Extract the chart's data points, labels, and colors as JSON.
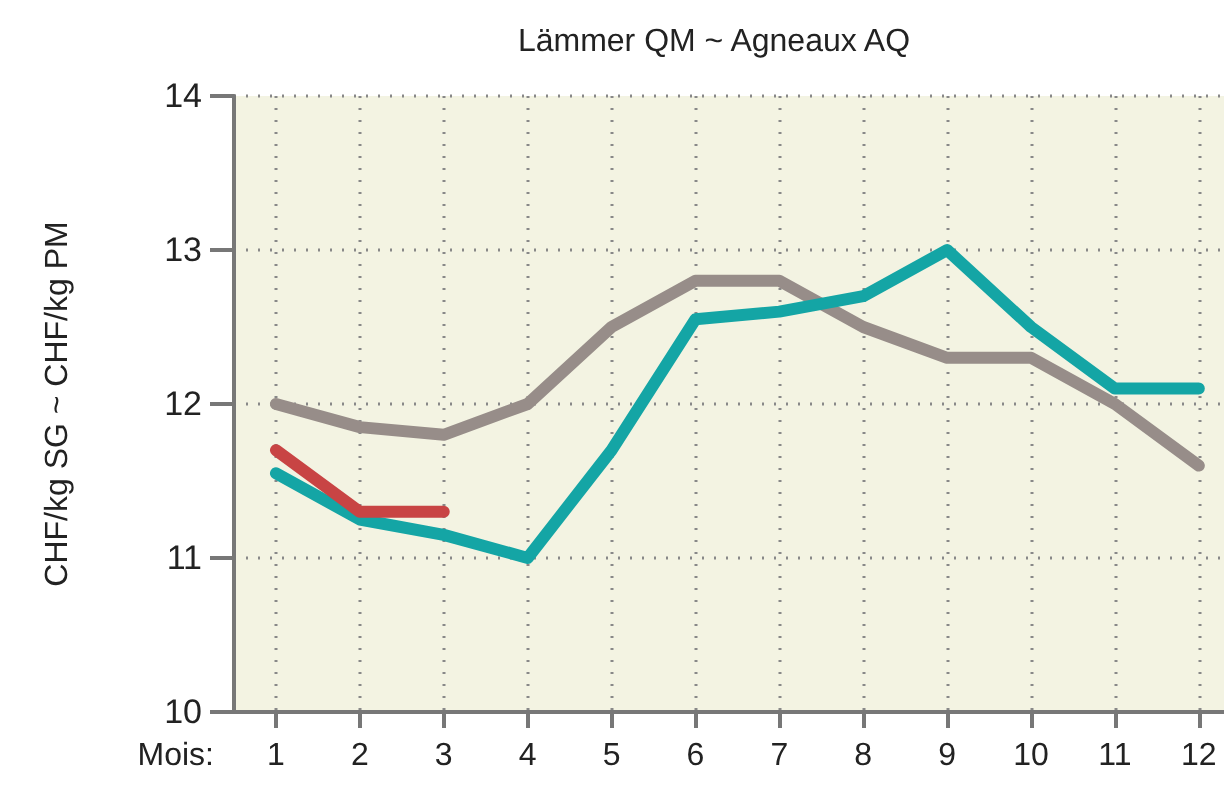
{
  "chart_data": {
    "type": "line",
    "title": "Lämmer QM ~ Agneaux AQ",
    "xlabel": "Mois:",
    "ylabel": "CHF/kg SG ~ CHF/kg PM",
    "x": [
      1,
      2,
      3,
      4,
      5,
      6,
      7,
      8,
      9,
      10,
      11,
      12
    ],
    "series": [
      {
        "color": "#978d89",
        "values": [
          12.0,
          11.85,
          11.8,
          12.0,
          12.5,
          12.8,
          12.8,
          12.5,
          12.3,
          12.3,
          12.0,
          11.6
        ]
      },
      {
        "color": "#14a5a5",
        "values": [
          11.55,
          11.25,
          11.15,
          11.0,
          11.7,
          12.55,
          12.6,
          12.7,
          13.0,
          12.5,
          12.1,
          12.1
        ]
      },
      {
        "color": "#c84444",
        "values": [
          11.7,
          11.3,
          11.3,
          null,
          null,
          null,
          null,
          null,
          null,
          null,
          null,
          null
        ]
      }
    ],
    "xlim": [
      0.5,
      12.3
    ],
    "xticks": [
      1,
      2,
      3,
      4,
      5,
      6,
      7,
      8,
      9,
      10,
      11,
      12
    ],
    "ylim": [
      10,
      14
    ],
    "yticks": [
      10,
      11,
      12,
      13,
      14
    ],
    "grid": true,
    "marker": "none",
    "line_style": "solid"
  }
}
